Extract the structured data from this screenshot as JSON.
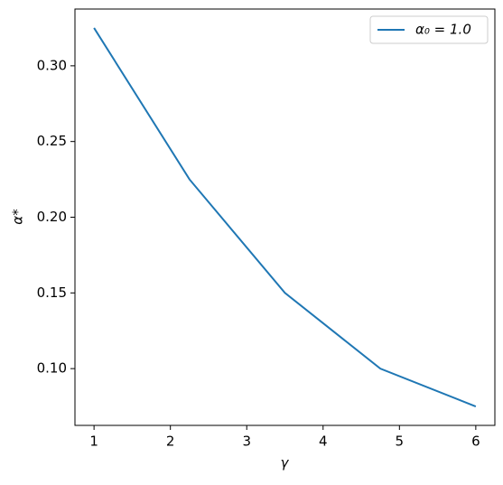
{
  "chart_data": {
    "type": "line",
    "x_label": "γ",
    "y_label": "α*",
    "series": [
      {
        "name": "α₀ = 1.0",
        "color": "#1f77b4",
        "x": [
          1,
          2.25,
          3.5,
          4.75,
          6
        ],
        "values": [
          0.325,
          0.225,
          0.15,
          0.1,
          0.075
        ]
      }
    ],
    "xlim": [
      0.75,
      6.25
    ],
    "ylim": [
      0.0625,
      0.3375
    ],
    "xticks": [
      1,
      2,
      3,
      4,
      5,
      6
    ],
    "yticks": [
      {
        "value": 0.1,
        "label": "0.10"
      },
      {
        "value": 0.15,
        "label": "0.15"
      },
      {
        "value": 0.2,
        "label": "0.20"
      },
      {
        "value": 0.25,
        "label": "0.25"
      },
      {
        "value": 0.3,
        "label": "0.30"
      }
    ],
    "legend": "upper right",
    "grid": false
  }
}
